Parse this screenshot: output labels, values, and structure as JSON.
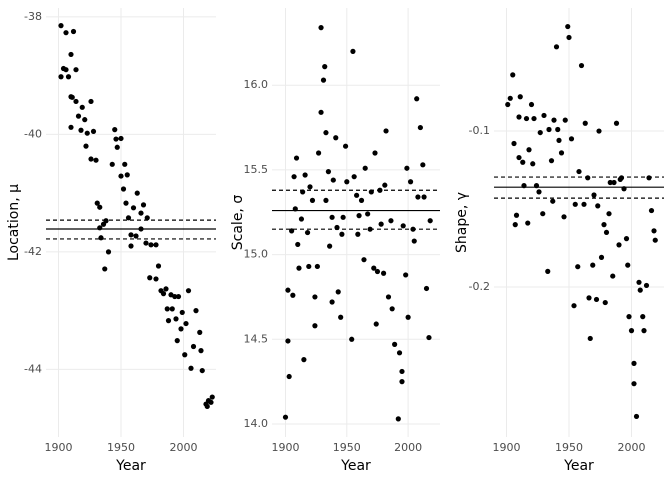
{
  "chart_data": [
    {
      "type": "scatter",
      "x_label": "Year",
      "y_label": "Location, μ",
      "color": "#000000",
      "grid": true,
      "xlim": [
        1890,
        2026
      ],
      "ylim": [
        -45.15,
        -37.85
      ],
      "xticks": [
        1900,
        1950,
        2000
      ],
      "yticks": [
        -38,
        -40,
        -42,
        -44
      ],
      "hlines": [
        {
          "value": -41.61,
          "style": "solid"
        },
        {
          "value": -41.46,
          "style": "dashed"
        },
        {
          "value": -41.78,
          "style": "dashed"
        }
      ],
      "x": [
        1902,
        1904,
        1902,
        1906,
        1906,
        1908,
        1910,
        1910,
        1912,
        1911,
        1914,
        1914,
        1916,
        1910,
        1919,
        1918,
        1921,
        1923,
        1922,
        1926,
        1926,
        1928,
        1930,
        1931,
        1933,
        1933,
        1934,
        1936,
        1937,
        1938,
        1940,
        1943,
        1945,
        1946,
        1947,
        1950,
        1950,
        1952,
        1953,
        1954,
        1955,
        1956,
        1958,
        1958,
        1960,
        1962,
        1963,
        1966,
        1966,
        1968,
        1970,
        1971,
        1973,
        1974,
        1978,
        1978,
        1980,
        1982,
        1984,
        1986,
        1987,
        1988,
        1990,
        1991,
        1993,
        1994,
        1995,
        1996,
        1998,
        1999,
        2001,
        2002,
        2004,
        2006,
        2008,
        2010,
        2013,
        2014,
        2015,
        2018,
        2019,
        2020,
        2022,
        2023
      ],
      "values": [
        -38.15,
        -38.88,
        -39.02,
        -38.9,
        -38.27,
        -39.02,
        -38.64,
        -39.36,
        -38.25,
        -39.37,
        -38.9,
        -39.44,
        -39.69,
        -39.88,
        -39.54,
        -39.93,
        -39.75,
        -39.98,
        -40.2,
        -39.44,
        -40.42,
        -39.95,
        -40.44,
        -41.17,
        -41.24,
        -41.59,
        -41.76,
        -41.53,
        -42.29,
        -41.47,
        -42.0,
        -40.51,
        -39.92,
        -40.08,
        -40.22,
        -40.07,
        -40.71,
        -40.93,
        -40.51,
        -41.17,
        -40.69,
        -41.42,
        -41.71,
        -41.9,
        -41.25,
        -41.73,
        -41.0,
        -41.34,
        -41.61,
        -41.2,
        -41.85,
        -41.42,
        -42.44,
        -41.88,
        -41.88,
        -42.46,
        -42.24,
        -42.66,
        -42.71,
        -42.63,
        -42.97,
        -43.17,
        -42.73,
        -42.97,
        -42.76,
        -43.14,
        -43.51,
        -42.76,
        -43.31,
        -43.03,
        -43.75,
        -43.22,
        -42.66,
        -43.98,
        -43.61,
        -43.0,
        -43.37,
        -43.68,
        -44.02,
        -44.59,
        -44.63,
        -44.53,
        -44.56,
        -44.47
      ]
    },
    {
      "type": "scatter",
      "x_label": "Year",
      "y_label": "Scale, σ",
      "color": "#000000",
      "grid": true,
      "xlim": [
        1889,
        2026
      ],
      "ylim": [
        13.923,
        16.456
      ],
      "xticks": [
        1900,
        1950,
        2000
      ],
      "yticks": [
        {
          "value": 14,
          "label": "14.0"
        },
        14.5,
        {
          "value": 15,
          "label": "15.0"
        },
        15.5,
        {
          "value": 16,
          "label": "16.0"
        }
      ],
      "hlines": [
        {
          "value": 15.26,
          "style": "solid"
        },
        {
          "value": 15.38,
          "style": "dashed"
        },
        {
          "value": 15.15,
          "style": "dashed"
        }
      ],
      "x": [
        1900,
        1902,
        1903,
        1902,
        1906,
        1905,
        1907,
        1909,
        1908,
        1910,
        1911,
        1913,
        1914,
        1915,
        1916,
        1918,
        1919,
        1920,
        1922,
        1924,
        1924,
        1926,
        1927,
        1929,
        1929,
        1931,
        1932,
        1933,
        1933,
        1935,
        1936,
        1938,
        1938,
        1939,
        1941,
        1942,
        1943,
        1945,
        1946,
        1947,
        1949,
        1950,
        1954,
        1955,
        1956,
        1958,
        1959,
        1960,
        1962,
        1964,
        1965,
        1967,
        1969,
        1970,
        1972,
        1973,
        1974,
        1975,
        1977,
        1978,
        1980,
        1981,
        1982,
        1984,
        1986,
        1987,
        1989,
        1992,
        1993,
        1995,
        1995,
        1996,
        1998,
        1999,
        2000,
        2002,
        2004,
        2005,
        2007,
        2008,
        2010,
        2012,
        2013,
        2015,
        2017,
        2018
      ],
      "values": [
        14.04,
        14.49,
        14.28,
        14.79,
        14.76,
        15.14,
        15.46,
        15.57,
        15.27,
        15.06,
        14.92,
        15.21,
        15.37,
        14.38,
        15.47,
        15.13,
        14.93,
        15.4,
        15.32,
        14.58,
        14.75,
        14.93,
        15.6,
        15.84,
        16.34,
        16.03,
        16.11,
        15.72,
        15.32,
        15.49,
        15.05,
        14.72,
        15.22,
        15.44,
        15.69,
        15.16,
        14.78,
        14.63,
        15.12,
        15.22,
        15.64,
        15.43,
        14.5,
        16.2,
        15.46,
        15.35,
        15.12,
        15.23,
        15.32,
        14.97,
        15.51,
        15.24,
        15.15,
        15.37,
        14.92,
        15.6,
        14.59,
        14.9,
        15.38,
        15.18,
        14.89,
        15.41,
        15.73,
        14.75,
        15.2,
        14.68,
        14.47,
        14.03,
        14.42,
        14.31,
        14.25,
        15.17,
        14.88,
        15.51,
        14.63,
        15.43,
        15.15,
        15.08,
        15.92,
        15.34,
        15.75,
        15.53,
        15.34,
        14.8,
        14.51,
        15.2
      ]
    },
    {
      "type": "scatter",
      "x_label": "Year",
      "y_label": "Shape, γ",
      "color": "#000000",
      "grid": true,
      "xlim": [
        1890,
        2026
      ],
      "ylim": [
        -0.2962,
        -0.0211
      ],
      "xticks": [
        1900,
        1950,
        2000
      ],
      "yticks": [
        -0.1,
        -0.2
      ],
      "hlines": [
        {
          "value": -0.136,
          "style": "solid"
        },
        {
          "value": -0.1295,
          "style": "dashed"
        },
        {
          "value": -0.143,
          "style": "dashed"
        }
      ],
      "x": [
        1901,
        1903,
        1905,
        1906,
        1908,
        1907,
        1910,
        1910,
        1911,
        1913,
        1914,
        1916,
        1917,
        1918,
        1920,
        1921,
        1922,
        1924,
        1926,
        1927,
        1929,
        1930,
        1933,
        1934,
        1936,
        1937,
        1938,
        1940,
        1941,
        1942,
        1944,
        1946,
        1947,
        1949,
        1950,
        1952,
        1954,
        1955,
        1957,
        1958,
        1960,
        1962,
        1963,
        1965,
        1966,
        1967,
        1969,
        1970,
        1972,
        1973,
        1974,
        1976,
        1978,
        1979,
        1980,
        1982,
        1983,
        1985,
        1986,
        1988,
        1990,
        1991,
        1992,
        1994,
        1996,
        1997,
        1998,
        2000,
        2002,
        2002,
        2004,
        2006,
        2007,
        2009,
        2010,
        2012,
        2014,
        2016,
        2018,
        2019
      ],
      "values": [
        -0.083,
        -0.079,
        -0.064,
        -0.108,
        -0.154,
        -0.16,
        -0.091,
        -0.117,
        -0.078,
        -0.12,
        -0.135,
        -0.092,
        -0.159,
        -0.112,
        -0.083,
        -0.121,
        -0.092,
        -0.135,
        -0.139,
        -0.101,
        -0.153,
        -0.09,
        -0.19,
        -0.099,
        -0.119,
        -0.145,
        -0.093,
        -0.046,
        -0.099,
        -0.106,
        -0.114,
        -0.155,
        -0.093,
        -0.033,
        -0.04,
        -0.105,
        -0.212,
        -0.147,
        -0.187,
        -0.126,
        -0.058,
        -0.147,
        -0.095,
        -0.13,
        -0.207,
        -0.233,
        -0.186,
        -0.141,
        -0.208,
        -0.148,
        -0.1,
        -0.181,
        -0.16,
        -0.21,
        -0.165,
        -0.153,
        -0.133,
        -0.193,
        -0.133,
        -0.095,
        -0.173,
        -0.131,
        -0.13,
        -0.137,
        -0.169,
        -0.186,
        -0.219,
        -0.228,
        -0.249,
        -0.262,
        -0.283,
        -0.197,
        -0.202,
        -0.219,
        -0.228,
        -0.199,
        -0.13,
        -0.151,
        -0.164,
        -0.17
      ]
    }
  ]
}
